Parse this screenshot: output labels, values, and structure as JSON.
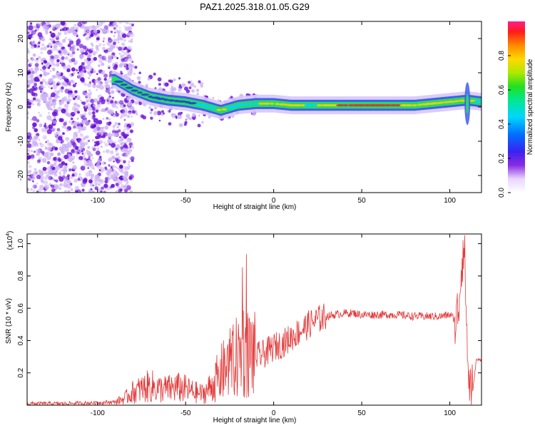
{
  "title": "PAZ1.2025.318.01.05.G29",
  "colors": {
    "snr_line": "#e23a3a",
    "ridge_core": "#e23030",
    "ridge_mid": "#27d86a",
    "ridge_outer": "#3f5cf0",
    "scatter_dark": "#6a10d8",
    "scatter_light": "#cdb3f5",
    "frame": "#000000"
  },
  "chart_data": [
    {
      "type": "heatmap",
      "id": "spectrogram",
      "title": "PAZ1.2025.318.01.05.G29",
      "xlabel": "Height of straight line (km)",
      "ylabel": "Frequency (Hz)",
      "xlim": [
        -140,
        118
      ],
      "ylim": [
        -25,
        25
      ],
      "xticks": [
        -100,
        -50,
        0,
        50,
        100
      ],
      "yticks": [
        -20,
        -10,
        0,
        10,
        20
      ],
      "xtick_labels": [
        "-100",
        "-50",
        "0",
        "50",
        "100"
      ],
      "ytick_labels": [
        "-20",
        "-10",
        "0",
        "10",
        "20"
      ],
      "colorbar": {
        "label": "Normalized spectral amplitude",
        "range": [
          0,
          1
        ],
        "ticks": [
          0.0,
          0.2,
          0.4,
          0.6,
          0.8
        ],
        "tick_labels": [
          "0.0",
          "0.2",
          "0.4",
          "0.6",
          "0.8"
        ]
      },
      "ridge": {
        "x": [
          -90,
          -80,
          -70,
          -60,
          -50,
          -40,
          -30,
          -20,
          -10,
          0,
          10,
          20,
          30,
          40,
          50,
          60,
          70,
          80,
          90,
          100,
          110,
          118
        ],
        "freq": [
          8,
          5,
          3,
          2,
          1.5,
          0.5,
          -1,
          0.5,
          1,
          1,
          0.5,
          0.5,
          0.5,
          0.5,
          0.5,
          0.5,
          0.5,
          0.5,
          1,
          1.5,
          2,
          1.5
        ],
        "amplitude": [
          0.35,
          0.4,
          0.45,
          0.5,
          0.45,
          0.55,
          0.7,
          0.55,
          0.6,
          0.8,
          0.85,
          0.6,
          0.7,
          0.9,
          1.0,
          0.95,
          0.9,
          0.7,
          0.8,
          0.8,
          0.7,
          0.6
        ]
      }
    },
    {
      "type": "line",
      "id": "snr",
      "xlabel": "Height of straight line (km)",
      "ylabel": "SNR (10 * v/v)",
      "y_multiplier": "(x10",
      "y_multiplier_exp": "4",
      "xlim": [
        -140,
        118
      ],
      "ylim": [
        0,
        1.06
      ],
      "xticks": [
        -100,
        -50,
        0,
        50,
        100
      ],
      "yticks": [
        0.2,
        0.4,
        0.6,
        0.8,
        1.0
      ],
      "xtick_labels": [
        "-100",
        "-50",
        "0",
        "50",
        "100"
      ],
      "ytick_labels": [
        "0.2",
        "0.4",
        "0.6",
        "0.8",
        "1.0"
      ],
      "series": [
        {
          "name": "SNR",
          "x": [
            -140,
            -120,
            -100,
            -90,
            -85,
            -80,
            -75,
            -70,
            -65,
            -60,
            -55,
            -50,
            -45,
            -40,
            -35,
            -30,
            -25,
            -20,
            -17,
            -15,
            -12,
            -10,
            -5,
            0,
            5,
            10,
            15,
            20,
            25,
            30,
            35,
            40,
            45,
            50,
            60,
            70,
            80,
            90,
            95,
            100,
            104,
            106,
            107,
            108,
            109,
            110,
            111,
            112,
            113,
            115,
            118
          ],
          "y": [
            0.01,
            0.01,
            0.015,
            0.02,
            0.04,
            0.08,
            0.1,
            0.12,
            0.1,
            0.1,
            0.11,
            0.1,
            0.08,
            0.07,
            0.12,
            0.2,
            0.25,
            0.3,
            0.35,
            0.32,
            0.32,
            0.3,
            0.32,
            0.36,
            0.38,
            0.42,
            0.46,
            0.5,
            0.53,
            0.55,
            0.56,
            0.57,
            0.57,
            0.56,
            0.56,
            0.56,
            0.55,
            0.55,
            0.55,
            0.56,
            0.52,
            0.75,
            0.95,
            0.98,
            0.75,
            0.3,
            0.15,
            0.1,
            0.08,
            0.28,
            0.28
          ]
        }
      ]
    }
  ]
}
